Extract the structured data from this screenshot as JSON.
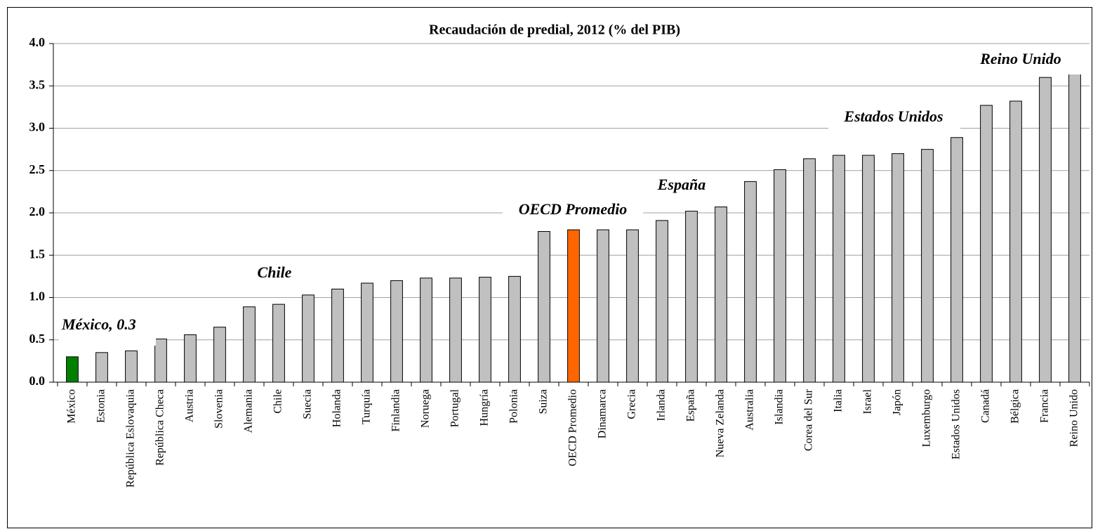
{
  "chart_data": {
    "type": "bar",
    "title": "Recaudación de predial, 2012 (% del PIB)",
    "categories": [
      "México",
      "Estonia",
      "República Eslovaquia",
      "República Checa",
      "Austria",
      "Slovenia",
      "Alemania",
      "Chile",
      "Suecia",
      "Holanda",
      "Turquía",
      "Finlandia",
      "Noruega",
      "Portugal",
      "Hungría",
      "Polonia",
      "Suiza",
      "OECD Promedio",
      "Dinamarca",
      "Grecia",
      "Irlanda",
      "España",
      "Nueva Zelanda",
      "Australia",
      "Islandia",
      "Corea del Sur",
      "Italia",
      "Israel",
      "Japón",
      "Luxemburgo",
      "Estados Unidos",
      "Canadá",
      "Bélgica",
      "Francia",
      "Reino Unido"
    ],
    "values": [
      0.3,
      0.35,
      0.37,
      0.51,
      0.56,
      0.65,
      0.89,
      0.92,
      1.03,
      1.1,
      1.17,
      1.2,
      1.23,
      1.23,
      1.24,
      1.25,
      1.78,
      1.8,
      1.8,
      1.8,
      1.91,
      2.02,
      2.07,
      2.37,
      2.51,
      2.64,
      2.68,
      2.68,
      2.7,
      2.75,
      2.89,
      3.27,
      3.32,
      3.6,
      3.92
    ],
    "colors": [
      "#008000",
      "#c0c0c0",
      "#c0c0c0",
      "#c0c0c0",
      "#c0c0c0",
      "#c0c0c0",
      "#c0c0c0",
      "#c0c0c0",
      "#c0c0c0",
      "#c0c0c0",
      "#c0c0c0",
      "#c0c0c0",
      "#c0c0c0",
      "#c0c0c0",
      "#c0c0c0",
      "#c0c0c0",
      "#c0c0c0",
      "#ff6600",
      "#c0c0c0",
      "#c0c0c0",
      "#c0c0c0",
      "#c0c0c0",
      "#c0c0c0",
      "#c0c0c0",
      "#c0c0c0",
      "#c0c0c0",
      "#c0c0c0",
      "#c0c0c0",
      "#c0c0c0",
      "#c0c0c0",
      "#c0c0c0",
      "#c0c0c0",
      "#c0c0c0",
      "#c0c0c0",
      "#c0c0c0"
    ],
    "ylim": [
      0,
      4
    ],
    "yticks": [
      {
        "value": 0,
        "label": "0.0"
      },
      0.5,
      {
        "value": 1,
        "label": "1.0"
      },
      1.5,
      {
        "value": 2,
        "label": "2.0"
      },
      2.5,
      {
        "value": 3,
        "label": "3.0"
      },
      3.5,
      {
        "value": 4,
        "label": "4.0"
      }
    ],
    "grid": true,
    "annotations": [
      "México, 0.3",
      "Chile",
      "OECD Promedio",
      "España",
      "Estados Unidos",
      "Reino Unido"
    ]
  }
}
